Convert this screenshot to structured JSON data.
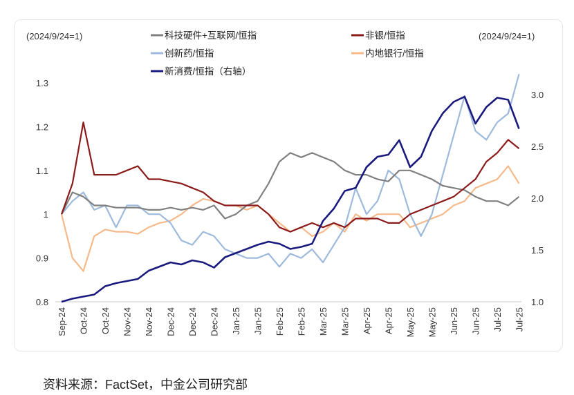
{
  "chart_data": {
    "type": "line",
    "left_axis_note": "(2024/9/24=1)",
    "right_axis_note": "(2024/9/24=1)",
    "categories": [
      "Sep-24",
      "Oct-24",
      "Oct-24",
      "Nov-24",
      "Nov-24",
      "Dec-24",
      "Dec-24",
      "Dec-24",
      "Jan-25",
      "Jan-25",
      "Feb-25",
      "Feb-25",
      "Mar-25",
      "Mar-25",
      "Apr-25",
      "Apr-25",
      "May-25",
      "May-25",
      "Jun-25",
      "Jun-25",
      "Jul-25",
      "Jul-25"
    ],
    "x": [
      0,
      0.5,
      1,
      1.5,
      2,
      2.5,
      3,
      3.5,
      4,
      4.5,
      5,
      5.5,
      6,
      6.5,
      7,
      7.5,
      8,
      8.5,
      9,
      9.5,
      10,
      10.5,
      11,
      11.5,
      12,
      12.5,
      13,
      13.5,
      14,
      14.5,
      15,
      15.5,
      16,
      16.5,
      17,
      17.5,
      18,
      18.5,
      19,
      19.5,
      20,
      20.5,
      21
    ],
    "ylim_left": [
      0.8,
      1.3
    ],
    "yticks_left": [
      "0.8",
      "0.9",
      "1",
      "1.1",
      "1.2",
      "1.3"
    ],
    "ylim_right": [
      1.0,
      3.0
    ],
    "yticks_right": [
      "1.0",
      "1.5",
      "2.0",
      "2.5",
      "3.0"
    ],
    "grid": false,
    "legend_position": "top",
    "series": [
      {
        "name": "科技硬件+互联网/恒指",
        "axis": "left",
        "color": "#808080",
        "values": [
          1.0,
          1.05,
          1.04,
          1.02,
          1.02,
          1.015,
          1.015,
          1.015,
          1.01,
          1.01,
          1.015,
          1.01,
          1.015,
          1.01,
          1.02,
          0.99,
          1.0,
          1.02,
          1.03,
          1.07,
          1.12,
          1.14,
          1.13,
          1.14,
          1.13,
          1.12,
          1.1,
          1.09,
          1.09,
          1.08,
          1.075,
          1.1,
          1.1,
          1.09,
          1.08,
          1.065,
          1.06,
          1.055,
          1.04,
          1.03,
          1.03,
          1.02,
          1.04
        ]
      },
      {
        "name": "非银/恒指",
        "axis": "left",
        "color": "#8b1a1a",
        "values": [
          1.0,
          1.07,
          1.21,
          1.09,
          1.09,
          1.09,
          1.1,
          1.11,
          1.08,
          1.08,
          1.075,
          1.07,
          1.06,
          1.05,
          1.03,
          1.02,
          1.02,
          1.02,
          1.02,
          1.0,
          0.97,
          0.96,
          0.97,
          0.98,
          0.97,
          0.98,
          0.97,
          0.99,
          0.99,
          0.99,
          0.98,
          0.98,
          1.0,
          1.01,
          1.02,
          1.03,
          1.04,
          1.06,
          1.08,
          1.12,
          1.14,
          1.17,
          1.15
        ]
      },
      {
        "name": "创新药/恒指",
        "axis": "left",
        "color": "#9db9dc",
        "values": [
          1.0,
          1.03,
          1.05,
          1.01,
          1.02,
          0.97,
          1.02,
          1.02,
          1.0,
          1.0,
          0.98,
          0.94,
          0.93,
          0.96,
          0.95,
          0.92,
          0.91,
          0.9,
          0.9,
          0.91,
          0.88,
          0.91,
          0.9,
          0.92,
          0.89,
          0.93,
          0.97,
          1.06,
          1.0,
          1.03,
          1.1,
          1.08,
          1.0,
          0.95,
          1.0,
          1.09,
          1.18,
          1.27,
          1.19,
          1.17,
          1.21,
          1.23,
          1.32
        ]
      },
      {
        "name": "内地银行/恒指",
        "axis": "left",
        "color": "#f5b98a",
        "values": [
          1.0,
          0.9,
          0.87,
          0.95,
          0.965,
          0.96,
          0.96,
          0.955,
          0.97,
          0.98,
          0.985,
          1.0,
          1.02,
          1.035,
          1.03,
          1.02,
          1.02,
          1.01,
          1.02,
          1.0,
          0.98,
          0.96,
          0.97,
          0.95,
          0.96,
          0.98,
          0.96,
          1.0,
          0.985,
          1.0,
          1.0,
          1.0,
          0.97,
          0.98,
          0.99,
          1.0,
          1.02,
          1.03,
          1.06,
          1.07,
          1.08,
          1.11,
          1.07
        ]
      },
      {
        "name": "新消费/恒指（右轴）",
        "axis": "right",
        "color": "#1a1a7e",
        "values": [
          1.0,
          1.03,
          1.05,
          1.07,
          1.15,
          1.18,
          1.2,
          1.22,
          1.3,
          1.34,
          1.38,
          1.36,
          1.4,
          1.38,
          1.33,
          1.43,
          1.47,
          1.51,
          1.55,
          1.58,
          1.56,
          1.51,
          1.53,
          1.56,
          1.78,
          1.9,
          2.07,
          2.1,
          2.3,
          2.4,
          2.42,
          2.56,
          2.3,
          2.4,
          2.65,
          2.82,
          2.93,
          2.98,
          2.72,
          2.88,
          2.97,
          2.95,
          2.67
        ]
      }
    ]
  },
  "source": "资料来源：FactSet，中金公司研究部"
}
